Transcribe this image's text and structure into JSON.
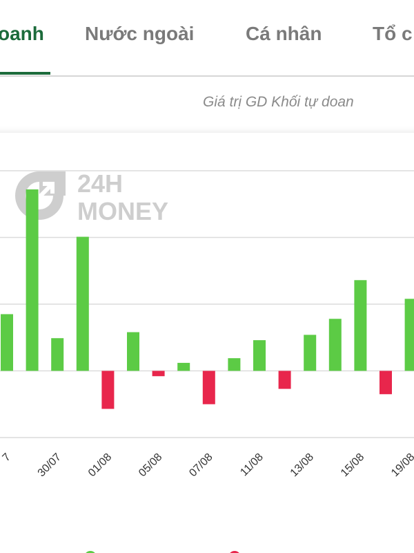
{
  "tabs": [
    "oanh",
    "Nước ngoài",
    "Cá nhân",
    "Tổ c"
  ],
  "subtitle": "Giá trị GD Khối tự doan",
  "watermark": {
    "top": "24H",
    "bottom": "MONEY"
  },
  "chart_data": {
    "type": "bar",
    "categories": [
      "7",
      null,
      "30/07",
      null,
      "01/08",
      null,
      "05/08",
      null,
      "07/08",
      null,
      "11/08",
      null,
      "13/08",
      null,
      "15/08",
      null,
      "19/08"
    ],
    "values": [
      0.85,
      2.72,
      0.49,
      2.01,
      -0.57,
      0.58,
      -0.08,
      0.12,
      -0.5,
      0.19,
      0.46,
      -0.27,
      0.54,
      0.78,
      1.36,
      -0.35,
      1.08
    ],
    "positive_color": "#5ccb45",
    "negative_color": "#e8264c",
    "ylim": [
      -1,
      3
    ],
    "gridlines": [
      -1,
      0,
      1,
      2,
      3
    ],
    "grid": true
  }
}
